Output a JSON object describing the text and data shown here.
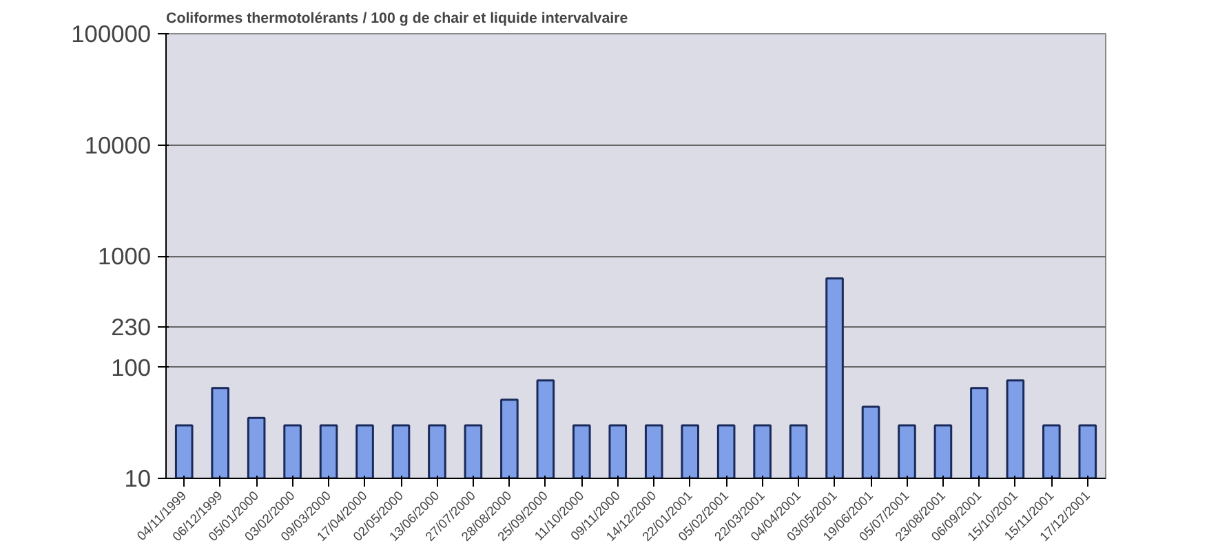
{
  "chart_data": {
    "type": "bar",
    "title": "Coliformes thermotolérants / 100 g de chair et liquide intervalvaire",
    "categories": [
      "04/11/1999",
      "06/12/1999",
      "05/01/2000",
      "03/02/2000",
      "09/03/2000",
      "17/04/2000",
      "02/05/2000",
      "13/06/2000",
      "27/07/2000",
      "28/08/2000",
      "25/09/2000",
      "11/10/2000",
      "09/11/2000",
      "14/12/2000",
      "22/01/2001",
      "05/02/2001",
      "22/03/2001",
      "04/04/2001",
      "03/05/2001",
      "19/06/2001",
      "05/07/2001",
      "23/08/2001",
      "06/09/2001",
      "15/10/2001",
      "15/11/2001",
      "17/12/2001"
    ],
    "values": [
      30,
      65,
      35,
      30,
      30,
      30,
      30,
      30,
      30,
      51,
      76,
      30,
      30,
      30,
      30,
      30,
      30,
      30,
      630,
      44,
      30,
      30,
      65,
      76,
      30,
      30
    ],
    "color": "#7f9fe8",
    "log": true,
    "ylim": [
      10,
      100000
    ],
    "yticks": [
      10,
      100,
      230,
      1000,
      10000,
      100000
    ],
    "grid": "y"
  }
}
